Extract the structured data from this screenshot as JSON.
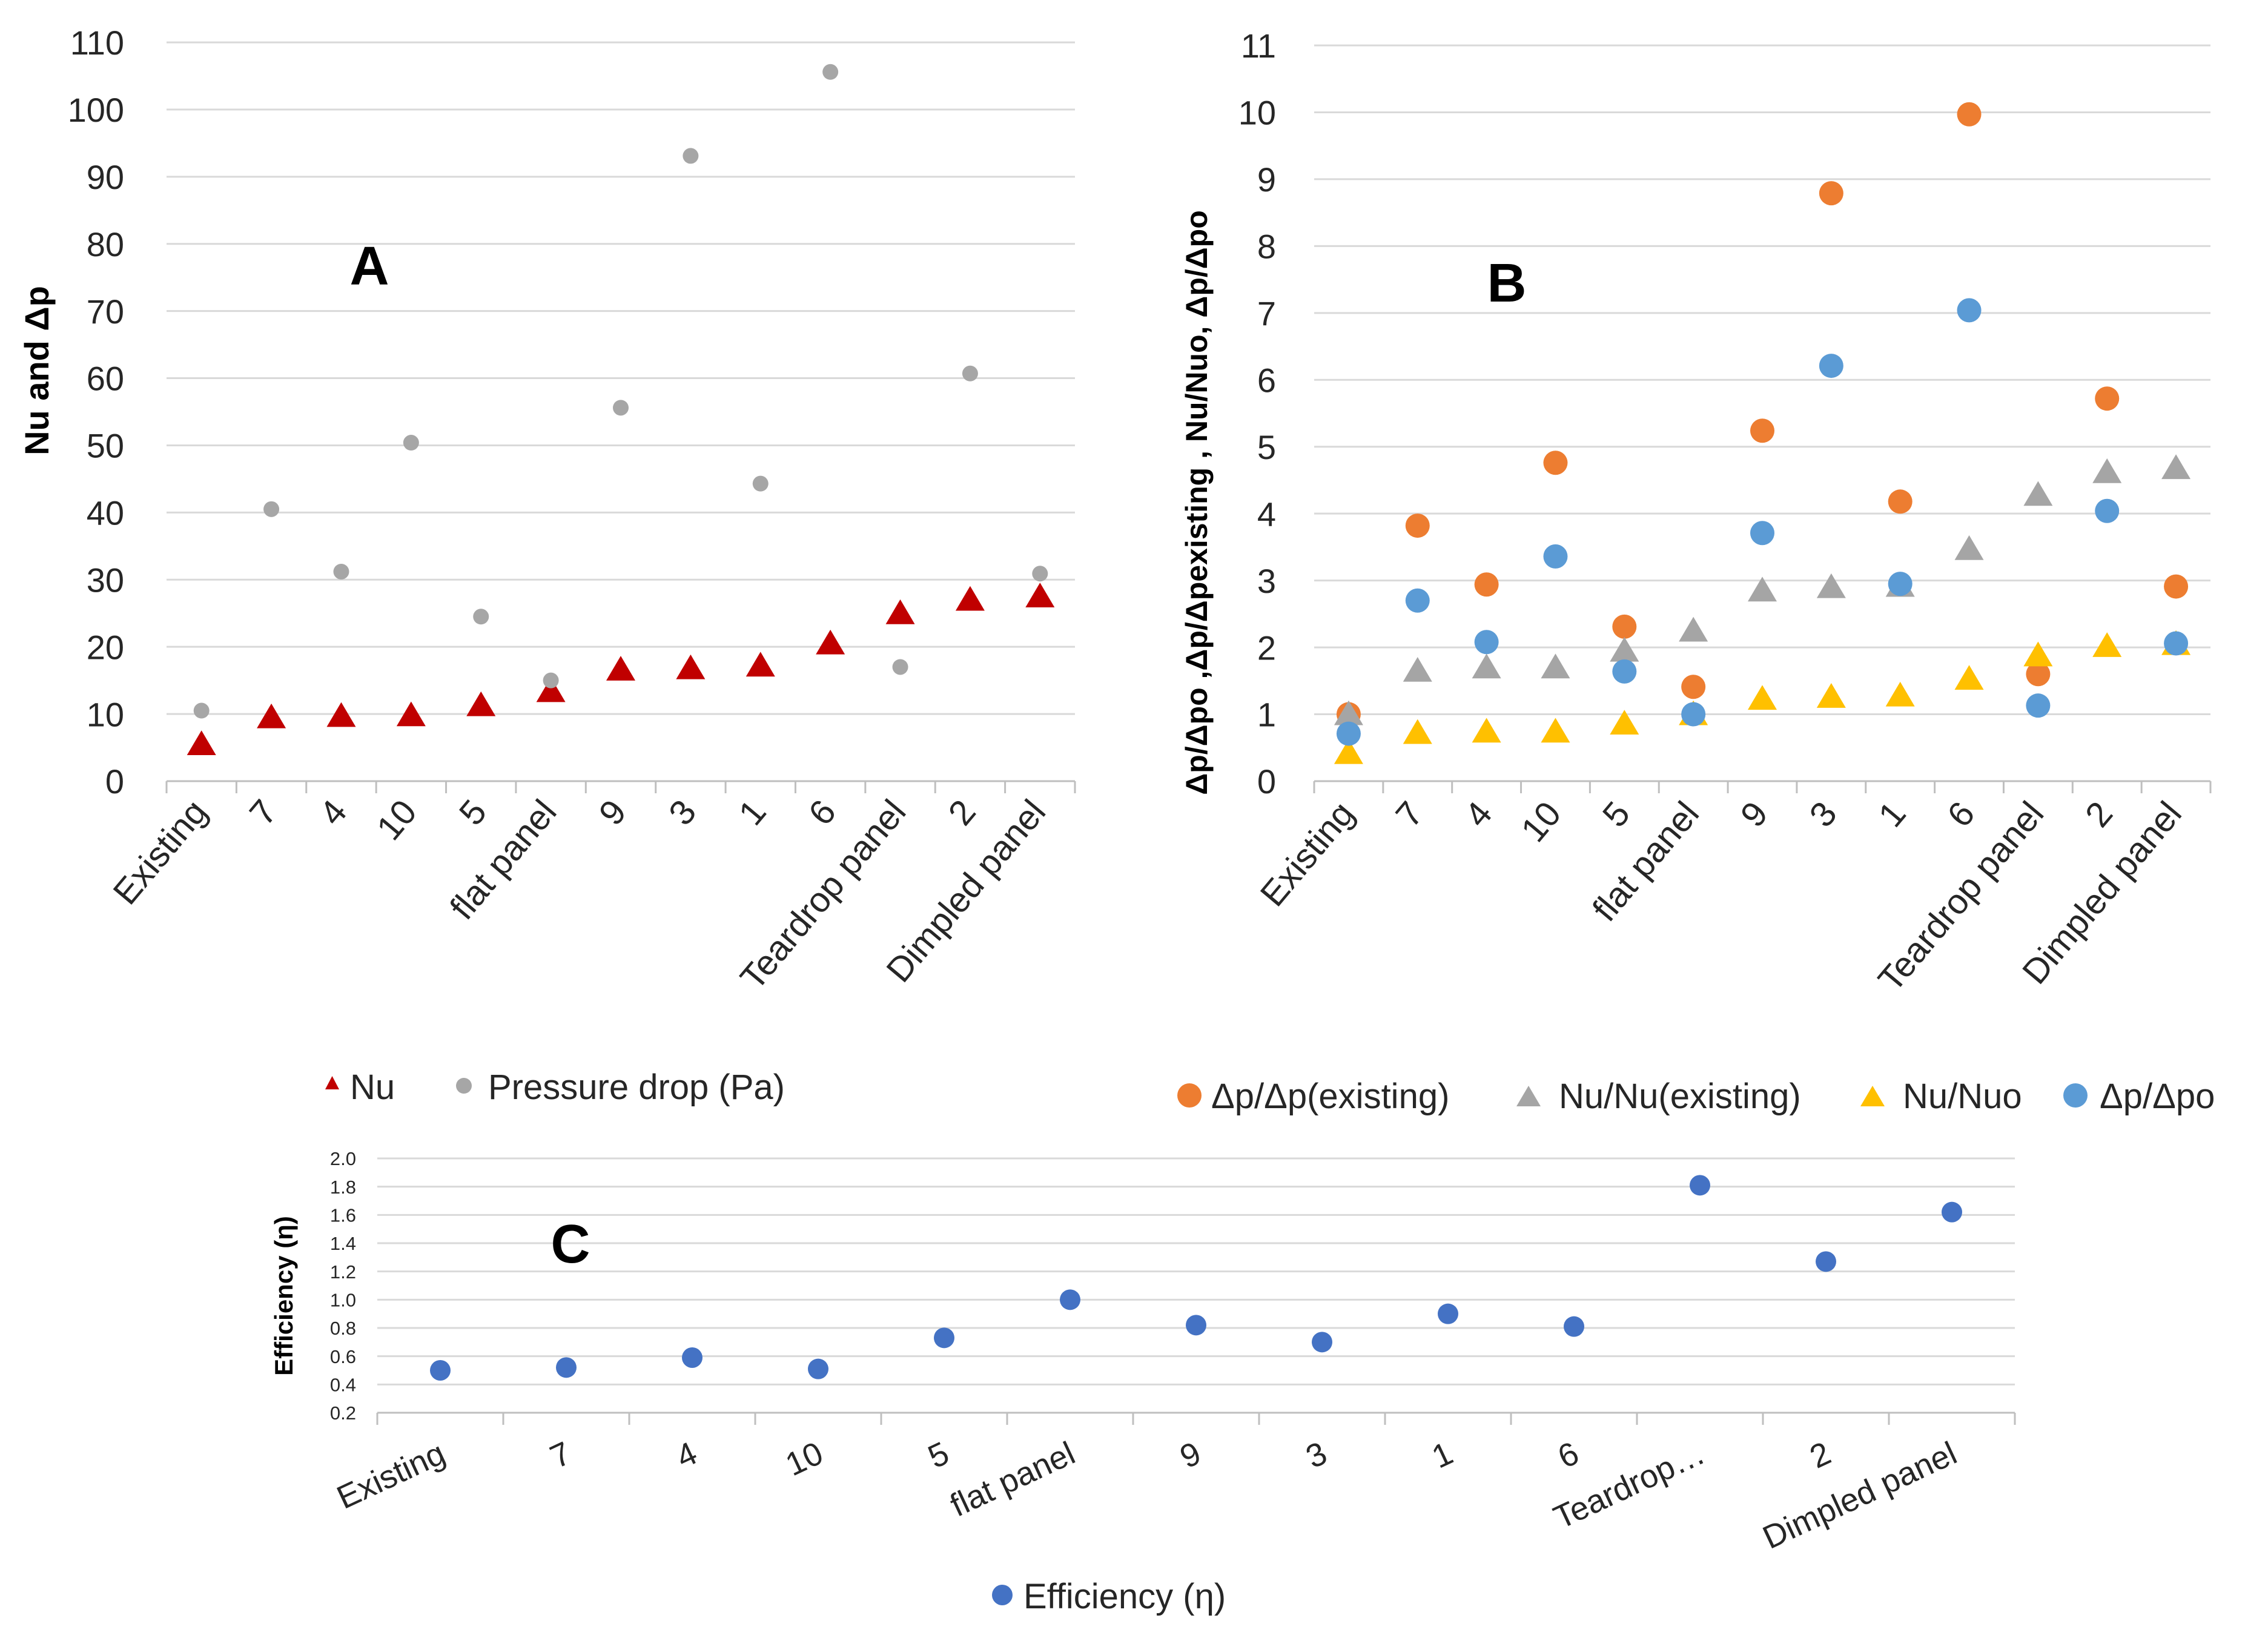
{
  "colors": {
    "nu": "#C00000",
    "pressure": "#A6A6A6",
    "dp_existing": "#ED7D31",
    "nu_existing": "#A5A5A5",
    "nu_nuo": "#FFC000",
    "dp_dpo": "#5B9BD5",
    "efficiency": "#4472C4",
    "grid": "#D9D9D9"
  },
  "chart_data": [
    {
      "id": "A",
      "type": "scatter",
      "panel_label": "A",
      "ylabel": "Nu and Δp",
      "xlabel": "",
      "ylim": [
        0,
        110
      ],
      "yticks": [
        "0",
        "10",
        "20",
        "30",
        "40",
        "50",
        "60",
        "70",
        "80",
        "90",
        "100",
        "110"
      ],
      "categories": [
        "Existing",
        "7",
        "4",
        "10",
        "5",
        "flat panel",
        "9",
        "3",
        "1",
        "6",
        "Teardrop panel",
        "2",
        "Dimpled panel"
      ],
      "grid": true,
      "legend_position": "bottom",
      "series": [
        {
          "name": "Nu",
          "marker": "triangle",
          "color_key": "nu",
          "values": [
            5.5,
            9.5,
            9.7,
            9.8,
            11.3,
            13.4,
            16.6,
            16.8,
            17.2,
            20.5,
            25.0,
            27.0,
            27.5
          ]
        },
        {
          "name": "Pressure drop (Pa)",
          "marker": "circle",
          "color_key": "pressure",
          "values": [
            10.5,
            40.5,
            31.2,
            50.4,
            24.5,
            15.0,
            55.6,
            93.1,
            44.3,
            105.6,
            17.0,
            60.7,
            30.9
          ]
        }
      ]
    },
    {
      "id": "B",
      "type": "scatter",
      "panel_label": "B",
      "ylabel": "Δp/Δpo ,Δp/Δpexisting , Nu/Nuo, Δp/Δpo",
      "xlabel": "",
      "ylim": [
        0,
        11
      ],
      "yticks": [
        "0",
        "1",
        "2",
        "3",
        "4",
        "5",
        "6",
        "7",
        "8",
        "9",
        "10",
        "11"
      ],
      "categories": [
        "Existing",
        "7",
        "4",
        "10",
        "5",
        "flat panel",
        "9",
        "3",
        "1",
        "6",
        "Teardrop panel",
        "2",
        "Dimpled panel"
      ],
      "grid": true,
      "legend_position": "bottom",
      "series": [
        {
          "name": "Δp/Δp(existing)",
          "marker": "circle",
          "color_key": "dp_existing",
          "values": [
            1.0,
            3.82,
            2.94,
            4.76,
            2.31,
            1.41,
            5.24,
            8.79,
            4.18,
            9.97,
            1.6,
            5.72,
            2.91
          ]
        },
        {
          "name": "Nu/Nu(existing)",
          "marker": "triangle",
          "color_key": "nu_existing",
          "values": [
            1.0,
            1.65,
            1.7,
            1.7,
            1.95,
            2.25,
            2.85,
            2.9,
            2.92,
            3.47,
            4.28,
            4.62,
            4.68
          ]
        },
        {
          "name": "Nu/Nuo",
          "marker": "triangle",
          "color_key": "nu_nuo",
          "values": [
            0.42,
            0.72,
            0.74,
            0.74,
            0.86,
            1.0,
            1.23,
            1.26,
            1.28,
            1.53,
            1.88,
            2.02,
            2.05
          ]
        },
        {
          "name": "Δp/Δpo",
          "marker": "circle",
          "color_key": "dp_dpo",
          "values": [
            0.71,
            2.7,
            2.08,
            3.36,
            1.64,
            1.0,
            3.71,
            6.21,
            2.95,
            7.04,
            1.13,
            4.04,
            2.06
          ]
        }
      ]
    },
    {
      "id": "C",
      "type": "scatter",
      "panel_label": "C",
      "ylabel": "Efficiency (η)",
      "xlabel": "",
      "ylim": [
        0.2,
        2.0
      ],
      "yticks": [
        "0.2",
        "0.4",
        "0.6",
        "0.8",
        "1.0",
        "1.2",
        "1.4",
        "1.6",
        "1.8",
        "2.0"
      ],
      "categories": [
        "Existing",
        "7",
        "4",
        "10",
        "5",
        "flat panel",
        "9",
        "3",
        "1",
        "6",
        "Teardrop…",
        "2",
        "Dimpled panel"
      ],
      "grid": true,
      "legend_position": "bottom",
      "series": [
        {
          "name": "Efficiency (η)",
          "marker": "circle",
          "color_key": "efficiency",
          "values": [
            0.5,
            0.52,
            0.59,
            0.51,
            0.73,
            1.0,
            0.82,
            0.7,
            0.9,
            0.81,
            1.81,
            1.27,
            1.62
          ]
        }
      ]
    }
  ]
}
